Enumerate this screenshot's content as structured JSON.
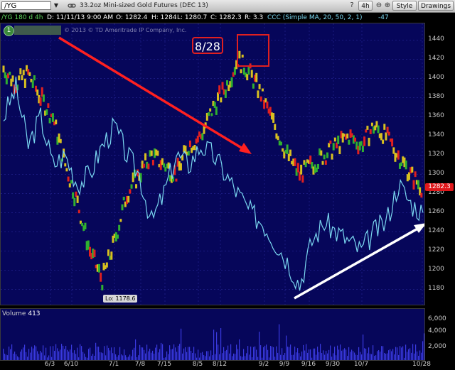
{
  "toolbar": {
    "symbol": "/YG",
    "description": "33.2oz Mini-sized Gold Futures (DEC 13)",
    "timeframe": "4h",
    "style_label": "Style",
    "drawings_label": "Drawings"
  },
  "info": {
    "symbol_tf": "/YG 180 d 4h",
    "date": "D: 11/11/13 9:00 AM",
    "open": "O: 1282.4",
    "high": "H: 1284",
    "low": "L: 1280.7",
    "close": "C: 1282.3",
    "range": "R: 3.3",
    "study": "CCC (Simple MA, 20, 50, 2, 1)",
    "study_value": "-47"
  },
  "chart": {
    "badge": "1",
    "copyright": "© 2013 © TD Ameritrade IP Company, Inc.",
    "callout": "8/28",
    "last_price": "1282.3",
    "low_label": "Lo: 1178.6",
    "y_ticks": [
      "1440",
      "1420",
      "1400",
      "1380",
      "1360",
      "1340",
      "1320",
      "1300",
      "1280",
      "1260",
      "1240",
      "1220",
      "1200",
      "1180"
    ],
    "x_ticks": [
      "6/3",
      "6/10",
      "7/1",
      "7/8",
      "7/15",
      "8/5",
      "8/12",
      "9/2",
      "9/9",
      "9/16",
      "9/30",
      "10/7",
      "10/28"
    ],
    "colors": {
      "up": "#d8c020",
      "down": "#e02020",
      "mid": "#30b030",
      "indicator": "#7ad7f0",
      "arrow_red": "#ff2020",
      "arrow_white": "#ffffff"
    }
  },
  "volume": {
    "title": "Volume",
    "value": "413",
    "y_ticks": [
      "6,000",
      "4,000",
      "2,000"
    ]
  },
  "chart_data": {
    "type": "line",
    "title": "33.2oz Mini-sized Gold Futures (DEC 13)",
    "xlabel": "",
    "ylabel": "",
    "ylim": [
      1170,
      1450
    ],
    "series": [
      {
        "values": [
          1410,
          1395,
          1405,
          1380,
          1360,
          1310,
          1270,
          1220,
          1190,
          1230,
          1280,
          1300,
          1320,
          1310,
          1300,
          1330,
          1340,
          1370,
          1390,
          1420,
          1405,
          1380,
          1350,
          1320,
          1300,
          1310,
          1320,
          1330,
          1340,
          1330,
          1350,
          1340,
          1320,
          1300,
          1285
        ]
      },
      {
        "values": [
          1360,
          1390,
          1330,
          1360,
          1310,
          1320,
          1290,
          1300,
          1330,
          1350,
          1320,
          1300,
          1250,
          1280,
          1320,
          1310,
          1330,
          1320,
          1300,
          1280,
          1260,
          1250,
          1230,
          1210,
          1185,
          1230,
          1250,
          1240,
          1230,
          1220,
          1240,
          1250,
          1290,
          1270,
          1260
        ]
      }
    ]
  }
}
